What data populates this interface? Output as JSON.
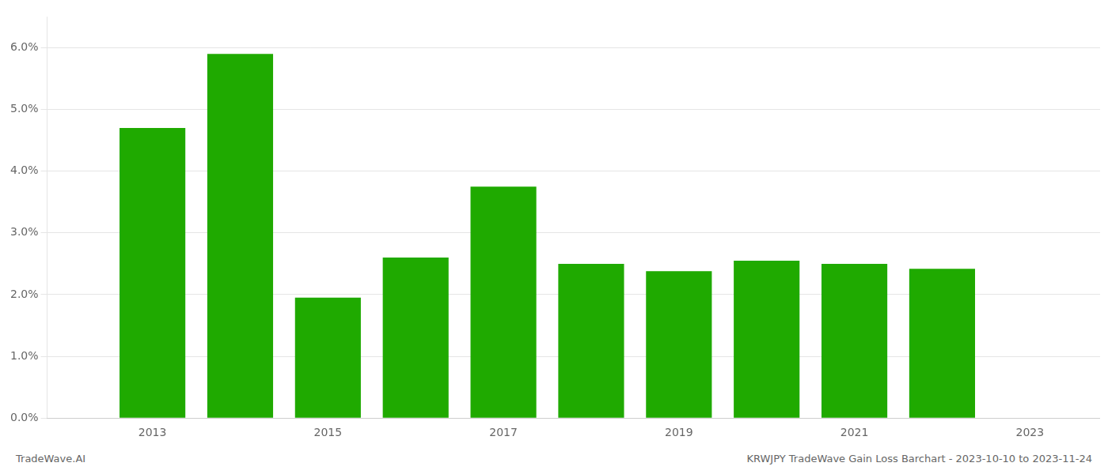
{
  "chart_data": {
    "type": "bar",
    "x": [
      2013,
      2014,
      2015,
      2016,
      2017,
      2018,
      2019,
      2020,
      2021,
      2022
    ],
    "values": [
      0.047,
      0.059,
      0.0195,
      0.026,
      0.0375,
      0.025,
      0.0238,
      0.0255,
      0.025,
      0.0242
    ],
    "color": "#1faa00",
    "xlim": [
      2011.8,
      2023.8
    ],
    "xticks": [
      2013,
      2015,
      2017,
      2019,
      2021,
      2023
    ],
    "ylim": [
      0.0,
      0.065
    ],
    "yticks": [
      {
        "value": 0.0,
        "label": "0.0%"
      },
      {
        "value": 0.01,
        "label": "1.0%"
      },
      {
        "value": 0.02,
        "label": "2.0%"
      },
      {
        "value": 0.03,
        "label": "3.0%"
      },
      {
        "value": 0.04,
        "label": "4.0%"
      },
      {
        "value": 0.05,
        "label": "5.0%"
      },
      {
        "value": 0.06,
        "label": "6.0%"
      }
    ],
    "grid": true,
    "annotations": [
      "TradeWave.AI",
      "KRWJPY TradeWave Gain Loss Barchart - 2023-10-10 to 2023-11-24"
    ]
  }
}
